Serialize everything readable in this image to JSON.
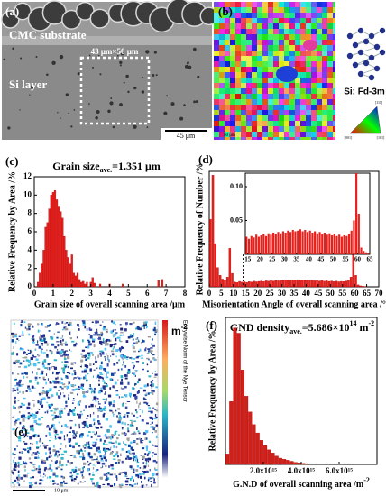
{
  "panels": {
    "a": {
      "label": "(a)",
      "substrate": "CMC substrate",
      "region": "43 μm×50 μm",
      "layer": "Si layer",
      "scale": "45 μm"
    },
    "b": {
      "label": "(b)",
      "phase": "Si: Fd-3m",
      "scale": "50 μm",
      "ipf": [
        "[001]",
        "[101]",
        "[111]"
      ]
    },
    "e": {
      "label": "(e)",
      "unit": [
        "m",
        "-2"
      ],
      "colorbar_label": "Entrywise Norm of the Nye Tensor",
      "scale": "10 μm"
    }
  },
  "chart_data": [
    {
      "type": "bar",
      "label": "(c)",
      "title": [
        "Grain size",
        "ave.",
        "=1.351 μm"
      ],
      "x_label": "Grain size of overall scanning area /μm",
      "y_label": "Relative Frequency by Area /%",
      "color": "#e8201c",
      "x": [
        0.2,
        0.3,
        0.4,
        0.5,
        0.6,
        0.7,
        0.8,
        0.9,
        1.0,
        1.1,
        1.2,
        1.3,
        1.4,
        1.5,
        1.6,
        1.7,
        1.8,
        1.9,
        2.0,
        2.1,
        2.2,
        2.3,
        2.4,
        2.5,
        2.6,
        2.7,
        2.8,
        3.0,
        3.1,
        3.2,
        3.5,
        4.0,
        4.7,
        6.6,
        6.8
      ],
      "values": [
        0.5,
        1.5,
        2.5,
        4,
        6.5,
        7,
        8.5,
        10,
        10.3,
        10.5,
        9.5,
        8.8,
        8.2,
        7.5,
        5.5,
        4,
        3.2,
        2.5,
        3.5,
        1.5,
        1.2,
        1.5,
        0.8,
        0.5,
        0.6,
        0.3,
        0.5,
        0.5,
        1,
        0.4,
        0.3,
        0.3,
        0.3,
        0.7,
        0.8
      ],
      "xlim": [
        0,
        8
      ],
      "xticks": [
        0,
        1,
        2,
        3,
        4,
        5,
        6,
        7,
        8
      ],
      "ylim": [
        0,
        12
      ],
      "yticks": [
        0,
        2,
        4,
        6,
        8,
        10,
        12
      ]
    },
    {
      "type": "bar",
      "label": "(d)",
      "x_label": "Misorientation Angle of overall scanning area /°",
      "y_label": "Relative Frequency of Number /%",
      "color": "#e8201c",
      "x": [
        0.5,
        1.5,
        2.5,
        3.5,
        4.5,
        5.5,
        6.5,
        7.5,
        8.5,
        9.5,
        10.5,
        11.5,
        12.5,
        13.5,
        14.5,
        15.5,
        16.5,
        17.5,
        18.5,
        19.5,
        20.5,
        21.5,
        22.5,
        23.5,
        24.5,
        25.5,
        26.5,
        27.5,
        28.5,
        29.5,
        30.5,
        31.5,
        32.5,
        33.5,
        34.5,
        35.5,
        36.5,
        37.5,
        38.5,
        39.5,
        40.5,
        41.5,
        42.5,
        43.5,
        44.5,
        45.5,
        46.5,
        47.5,
        48.5,
        49.5,
        50.5,
        51.5,
        52.5,
        53.5,
        54.5,
        55.5,
        56.5,
        57.5,
        58.5,
        59.5,
        60.5,
        61.5,
        62.5,
        63.5,
        64.5
      ],
      "values": [
        0.35,
        0.58,
        0.22,
        0.1,
        0.06,
        0.04,
        0.035,
        0.05,
        0.2,
        0.07,
        0.025,
        0.022,
        0.028,
        0.024,
        0.026,
        0.023,
        0.027,
        0.025,
        0.029,
        0.026,
        0.028,
        0.03,
        0.027,
        0.031,
        0.029,
        0.032,
        0.03,
        0.033,
        0.031,
        0.034,
        0.032,
        0.035,
        0.033,
        0.036,
        0.034,
        0.035,
        0.037,
        0.034,
        0.036,
        0.033,
        0.035,
        0.032,
        0.034,
        0.031,
        0.033,
        0.03,
        0.032,
        0.029,
        0.031,
        0.028,
        0.03,
        0.027,
        0.029,
        0.026,
        0.028,
        0.027,
        0.03,
        0.035,
        0.05,
        0.58,
        0.06,
        0.01,
        0.005,
        0.003,
        0.002
      ],
      "xlim": [
        0,
        70
      ],
      "xticks": [
        0,
        5,
        10,
        15,
        20,
        25,
        30,
        35,
        40,
        45,
        50,
        55,
        60,
        65,
        70
      ],
      "ylim": [
        0,
        0.6
      ],
      "inset": {
        "xlim": [
          14,
          65
        ],
        "xticks": [
          15,
          20,
          25,
          30,
          35,
          40,
          45,
          50,
          55,
          60,
          65
        ],
        "ylim": [
          0,
          0.12
        ],
        "yticks": [
          0.05,
          {
            "value": 0.1,
            "label": "0.10"
          }
        ]
      }
    },
    {
      "type": "bar",
      "label": "(f)",
      "title": [
        "GND density",
        "ave.",
        "=5.686×10",
        "14",
        "m",
        "-2"
      ],
      "x_label": [
        "G.N.D of overall scanning area /m",
        "-2"
      ],
      "y_label": "Relative Frequency by Area /%",
      "color": "#d0201a",
      "x": [
        100000000000000.0,
        300000000000000.0,
        500000000000000.0,
        700000000000000.0,
        900000000000000.0,
        1100000000000000.0,
        1300000000000000.0,
        1500000000000000.0,
        1700000000000000.0,
        1900000000000000.0,
        2100000000000000.0,
        2300000000000000.0,
        2500000000000000.0,
        2700000000000000.0,
        2900000000000000.0,
        3100000000000000.0,
        3300000000000000.0,
        3500000000000000.0,
        3700000000000000.0,
        3900000000000000.0,
        4100000000000000.0,
        4300000000000000.0
      ],
      "values": [
        1,
        6,
        13,
        12.5,
        9,
        6.5,
        5,
        3.8,
        3,
        2.3,
        1.8,
        1.4,
        1.1,
        0.8,
        0.6,
        0.5,
        0.4,
        0.3,
        0.2,
        0.15,
        0.1,
        0.08
      ],
      "xlim": [
        0,
        8000000000000000.0
      ],
      "xticks": [
        {
          "value": 2000000000000000.0,
          "label": "2.0x10¹⁵"
        },
        {
          "value": 4000000000000000.0,
          "label": "4.0x10¹⁵"
        },
        {
          "value": 6000000000000000.0,
          "label": "6.0x10¹⁵"
        }
      ],
      "ylim": [
        0,
        14
      ]
    }
  ]
}
